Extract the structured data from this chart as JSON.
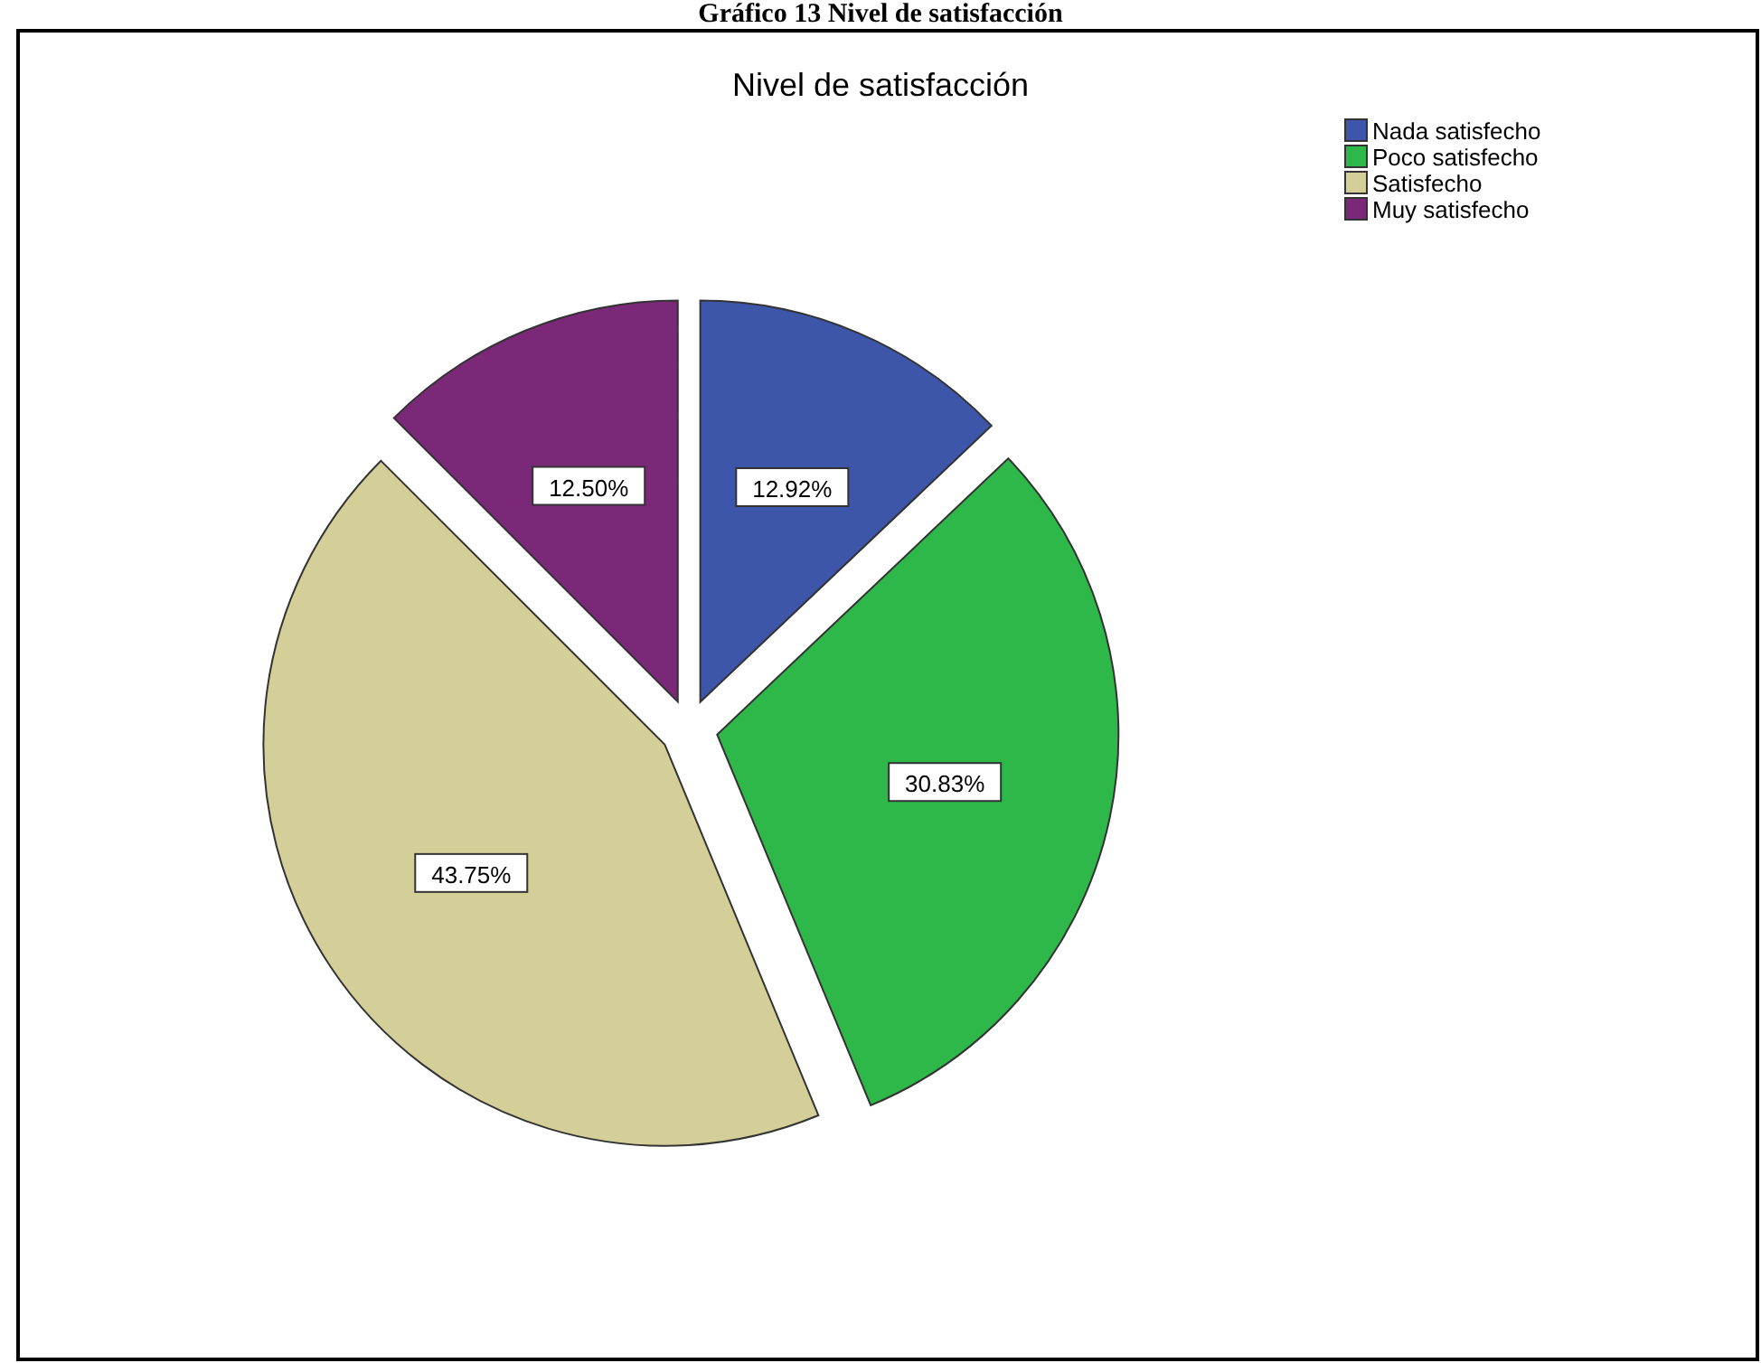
{
  "chart_data": {
    "type": "pie",
    "title": "Nivel de satisfacción",
    "annotations": [
      "Gráfico 13 Nivel de satisfacción"
    ],
    "categories": [
      "Nada satisfecho",
      "Poco satisfecho",
      "Satisfecho",
      "Muy satisfecho"
    ],
    "values": [
      12.92,
      30.83,
      43.75,
      12.5
    ],
    "colors": [
      "#3e56aa",
      "#2fb84a",
      "#d4cf98",
      "#7b2878"
    ],
    "value_labels": [
      "12.92%",
      "30.83%",
      "43.75%",
      "12.50%"
    ],
    "legend": "top right"
  }
}
